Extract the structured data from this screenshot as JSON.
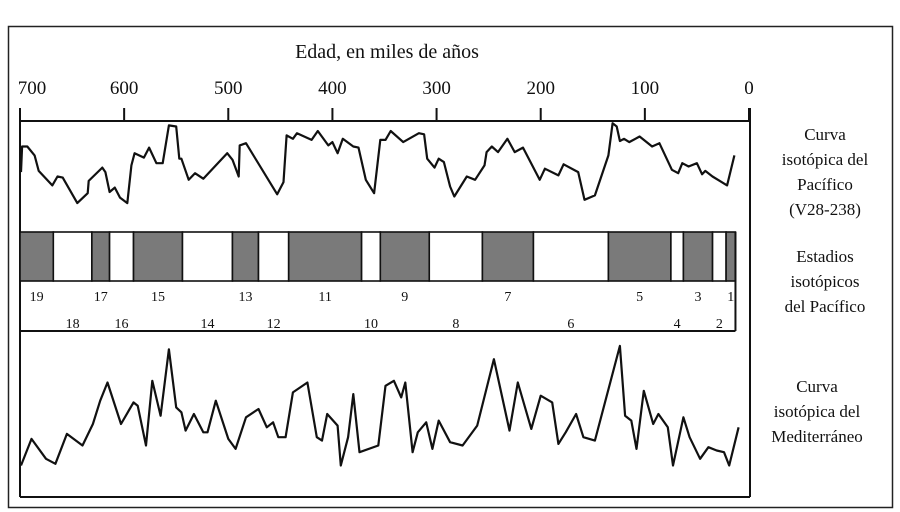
{
  "axis": {
    "title": "Edad, en miles de años",
    "ticks": [
      700,
      600,
      500,
      400,
      300,
      200,
      100,
      0
    ],
    "reversed": true,
    "range": [
      700,
      0
    ]
  },
  "labels": {
    "pacific_curve": [
      "Curva",
      "isotópica del",
      "Pacífico",
      "(V28-238)"
    ],
    "stages": [
      "Estadios",
      "isotópicos",
      "del Pacífico"
    ],
    "med_curve": [
      "Curva",
      "isotópica del",
      "Mediterráneo"
    ]
  },
  "colors": {
    "stage_dark": "#7a7a7a",
    "stage_light": "#ffffff",
    "line": "#111111"
  },
  "chart_data": {
    "type": "line",
    "title": "",
    "xlabel": "Edad, en miles de años",
    "xlim": [
      700,
      0
    ],
    "y_note_units": "relative (0-100), no y-axis printed",
    "stages": [
      {
        "n": "19",
        "from": 700,
        "to": 668,
        "dark": true
      },
      {
        "n": "18",
        "from": 668,
        "to": 631,
        "dark": false
      },
      {
        "n": "17",
        "from": 631,
        "to": 614,
        "dark": true
      },
      {
        "n": "16",
        "from": 614,
        "to": 591,
        "dark": false
      },
      {
        "n": "15",
        "from": 591,
        "to": 544,
        "dark": true
      },
      {
        "n": "14",
        "from": 544,
        "to": 496,
        "dark": false
      },
      {
        "n": "13",
        "from": 496,
        "to": 471,
        "dark": true
      },
      {
        "n": "12",
        "from": 471,
        "to": 442,
        "dark": false
      },
      {
        "n": "11",
        "from": 442,
        "to": 372,
        "dark": true
      },
      {
        "n": "10",
        "from": 372,
        "to": 354,
        "dark": false
      },
      {
        "n": "9",
        "from": 354,
        "to": 307,
        "dark": true
      },
      {
        "n": "8",
        "from": 307,
        "to": 256,
        "dark": false
      },
      {
        "n": "7",
        "from": 256,
        "to": 207,
        "dark": true
      },
      {
        "n": "6",
        "from": 207,
        "to": 135,
        "dark": false
      },
      {
        "n": "5",
        "from": 135,
        "to": 75,
        "dark": true
      },
      {
        "n": "4",
        "from": 75,
        "to": 63,
        "dark": false
      },
      {
        "n": "3",
        "from": 63,
        "to": 35,
        "dark": true
      },
      {
        "n": "2",
        "from": 35,
        "to": 22,
        "dark": false
      },
      {
        "n": "1",
        "from": 22,
        "to": 13,
        "dark": true
      }
    ],
    "series": [
      {
        "key": "pacific",
        "points": [
          [
            699,
            54
          ],
          [
            698,
            77
          ],
          [
            693,
            77
          ],
          [
            686,
            69
          ],
          [
            682,
            55
          ],
          [
            669,
            42
          ],
          [
            664,
            50
          ],
          [
            659,
            49
          ],
          [
            645,
            26
          ],
          [
            635,
            35
          ],
          [
            634,
            46
          ],
          [
            621,
            58
          ],
          [
            618,
            54
          ],
          [
            614,
            36
          ],
          [
            609,
            40
          ],
          [
            604,
            31
          ],
          [
            597,
            26
          ],
          [
            593,
            60
          ],
          [
            590,
            71
          ],
          [
            581,
            67
          ],
          [
            576,
            76
          ],
          [
            569,
            62
          ],
          [
            563,
            62
          ],
          [
            557,
            96
          ],
          [
            550,
            95
          ],
          [
            547,
            66
          ],
          [
            545,
            66
          ],
          [
            538,
            47
          ],
          [
            532,
            53
          ],
          [
            524,
            48
          ],
          [
            501,
            71
          ],
          [
            496,
            65
          ],
          [
            490,
            50
          ],
          [
            489,
            78
          ],
          [
            483,
            80
          ],
          [
            453,
            34
          ],
          [
            447,
            45
          ],
          [
            444,
            87
          ],
          [
            438,
            84
          ],
          [
            434,
            89
          ],
          [
            420,
            83
          ],
          [
            414,
            91
          ],
          [
            404,
            78
          ],
          [
            400,
            81
          ],
          [
            395,
            71
          ],
          [
            390,
            84
          ],
          [
            380,
            77
          ],
          [
            375,
            76
          ],
          [
            368,
            47
          ],
          [
            360,
            35
          ],
          [
            354,
            83
          ],
          [
            349,
            83
          ],
          [
            344,
            91
          ],
          [
            332,
            81
          ],
          [
            317,
            89
          ],
          [
            312,
            88
          ],
          [
            309,
            66
          ],
          [
            302,
            58
          ],
          [
            298,
            66
          ],
          [
            293,
            63
          ],
          [
            287,
            41
          ],
          [
            283,
            32
          ],
          [
            271,
            50
          ],
          [
            263,
            47
          ],
          [
            254,
            60
          ],
          [
            252,
            72
          ],
          [
            247,
            77
          ],
          [
            241,
            72
          ],
          [
            232,
            84
          ],
          [
            225,
            72
          ],
          [
            217,
            76
          ],
          [
            201,
            47
          ],
          [
            196,
            57
          ],
          [
            183,
            51
          ],
          [
            178,
            61
          ],
          [
            164,
            54
          ],
          [
            158,
            29
          ],
          [
            148,
            33
          ],
          [
            135,
            69
          ],
          [
            131,
            98
          ],
          [
            127,
            95
          ],
          [
            124,
            82
          ],
          [
            120,
            84
          ],
          [
            115,
            81
          ],
          [
            105,
            86
          ],
          [
            93,
            77
          ],
          [
            86,
            80
          ],
          [
            74,
            56
          ],
          [
            68,
            53
          ],
          [
            64,
            62
          ],
          [
            58,
            59
          ],
          [
            50,
            62
          ],
          [
            45,
            52
          ],
          [
            42,
            55
          ],
          [
            35,
            50
          ],
          [
            28,
            46
          ],
          [
            21,
            42
          ],
          [
            14,
            69
          ]
        ]
      },
      {
        "key": "mediterranean",
        "points": [
          [
            699,
            19
          ],
          [
            689,
            35
          ],
          [
            675,
            23
          ],
          [
            666,
            20
          ],
          [
            655,
            38
          ],
          [
            640,
            31
          ],
          [
            630,
            44
          ],
          [
            623,
            58
          ],
          [
            616,
            69
          ],
          [
            603,
            44
          ],
          [
            591,
            57
          ],
          [
            587,
            55
          ],
          [
            579,
            31
          ],
          [
            573,
            70
          ],
          [
            565,
            49
          ],
          [
            557,
            89
          ],
          [
            550,
            54
          ],
          [
            545,
            51
          ],
          [
            541,
            40
          ],
          [
            533,
            50
          ],
          [
            524,
            39
          ],
          [
            520,
            39
          ],
          [
            512,
            58
          ],
          [
            500,
            35
          ],
          [
            493,
            29
          ],
          [
            483,
            48
          ],
          [
            471,
            53
          ],
          [
            463,
            42
          ],
          [
            457,
            45
          ],
          [
            452,
            36
          ],
          [
            445,
            36
          ],
          [
            438,
            63
          ],
          [
            424,
            69
          ],
          [
            415,
            36
          ],
          [
            410,
            34
          ],
          [
            405,
            50
          ],
          [
            395,
            43
          ],
          [
            392,
            19
          ],
          [
            385,
            36
          ],
          [
            380,
            62
          ],
          [
            374,
            27
          ],
          [
            356,
            31
          ],
          [
            349,
            67
          ],
          [
            341,
            70
          ],
          [
            334,
            60
          ],
          [
            330,
            69
          ],
          [
            323,
            27
          ],
          [
            318,
            39
          ],
          [
            310,
            45
          ],
          [
            304,
            29
          ],
          [
            298,
            46
          ],
          [
            287,
            33
          ],
          [
            275,
            31
          ],
          [
            261,
            43
          ],
          [
            245,
            83
          ],
          [
            230,
            40
          ],
          [
            222,
            69
          ],
          [
            209,
            41
          ],
          [
            200,
            61
          ],
          [
            189,
            57
          ],
          [
            183,
            32
          ],
          [
            176,
            39
          ],
          [
            166,
            50
          ],
          [
            159,
            36
          ],
          [
            148,
            34
          ],
          [
            124,
            91
          ],
          [
            119,
            49
          ],
          [
            113,
            46
          ],
          [
            108,
            29
          ],
          [
            101,
            64
          ],
          [
            92,
            44
          ],
          [
            87,
            50
          ],
          [
            78,
            42
          ],
          [
            73,
            19
          ],
          [
            63,
            48
          ],
          [
            57,
            36
          ],
          [
            47,
            23
          ],
          [
            39,
            30
          ],
          [
            31,
            28
          ],
          [
            24,
            27
          ],
          [
            19,
            19
          ],
          [
            10,
            42
          ]
        ]
      }
    ]
  }
}
